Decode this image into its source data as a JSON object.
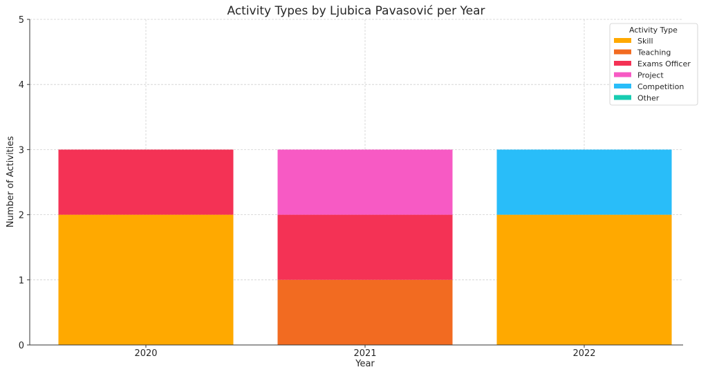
{
  "chart_data": {
    "type": "bar",
    "stacked": true,
    "title": "Activity Types by Ljubica Pavasović per Year",
    "xlabel": "Year",
    "ylabel": "Number of Activities",
    "categories": [
      "2020",
      "2021",
      "2022"
    ],
    "ylim": [
      0,
      5
    ],
    "yticks": [
      "0",
      "1",
      "2",
      "3",
      "4",
      "5"
    ],
    "grid": true,
    "legend": {
      "title": "Activity Type",
      "placement": "top-right"
    },
    "series": [
      {
        "name": "Skill",
        "color": "#FFA900",
        "values": [
          2,
          0,
          2
        ]
      },
      {
        "name": "Teaching",
        "color": "#F26B21",
        "values": [
          0,
          1,
          0
        ]
      },
      {
        "name": "Exams Officer",
        "color": "#F43255",
        "values": [
          1,
          1,
          0
        ]
      },
      {
        "name": "Project",
        "color": "#F75AC4",
        "values": [
          0,
          1,
          0
        ]
      },
      {
        "name": "Competition",
        "color": "#29BDF9",
        "values": [
          0,
          0,
          1
        ]
      },
      {
        "name": "Other",
        "color": "#17CCB1",
        "values": [
          0,
          0,
          0
        ]
      }
    ]
  }
}
